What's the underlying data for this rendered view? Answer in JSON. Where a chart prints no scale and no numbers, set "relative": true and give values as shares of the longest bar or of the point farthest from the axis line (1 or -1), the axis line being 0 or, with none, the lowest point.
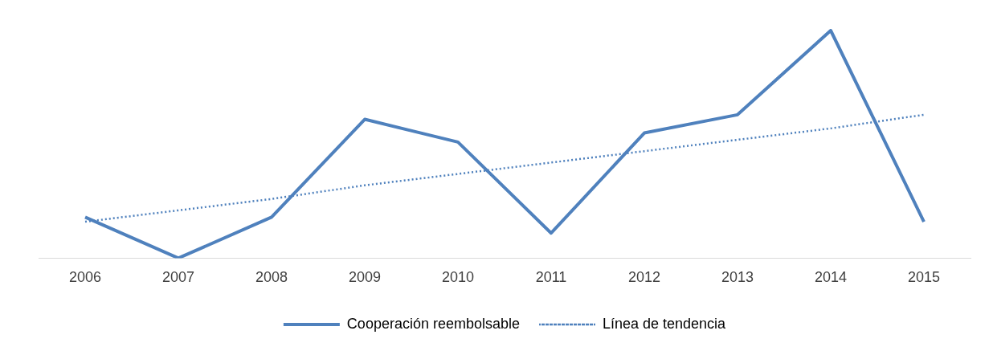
{
  "chart_data": {
    "type": "line",
    "relative": true,
    "categories": [
      "2006",
      "2007",
      "2008",
      "2009",
      "2010",
      "2011",
      "2012",
      "2013",
      "2014",
      "2015"
    ],
    "legend": "bottom",
    "series": [
      {
        "name": "Cooperación reembolsable",
        "color": "#4f81bd",
        "values": [
          0.18,
          0,
          0.18,
          0.61,
          0.51,
          0.11,
          0.55,
          0.63,
          1,
          0.16
        ]
      },
      {
        "name": "Línea de tendencia",
        "color": "#4f81bd",
        "line_style": "dotted",
        "values": [
          0.16,
          0.21,
          0.26,
          0.32,
          0.37,
          0.42,
          0.47,
          0.52,
          0.57,
          0.63
        ]
      }
    ]
  }
}
